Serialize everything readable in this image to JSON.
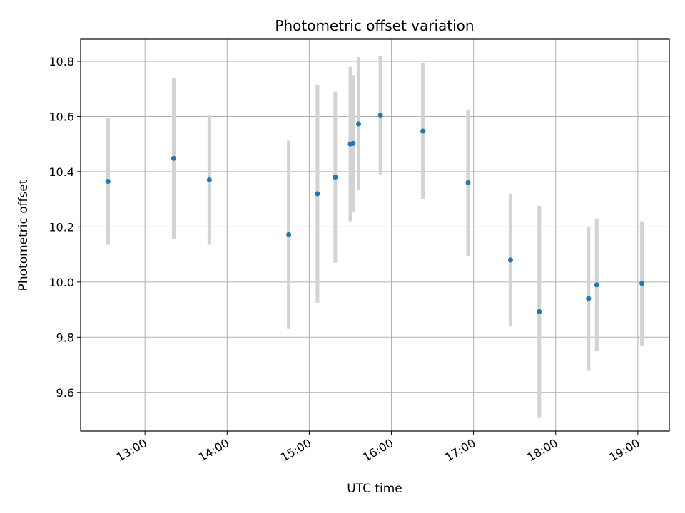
{
  "chart_data": {
    "type": "scatter",
    "title": "Photometric offset variation",
    "xlabel": "UTC time",
    "ylabel": "Photometric offset",
    "x_axis_type": "time",
    "xlim": [
      "12:13",
      "19:23"
    ],
    "ylim": [
      9.46,
      10.88
    ],
    "x_ticks": [
      "13:00",
      "14:00",
      "15:00",
      "16:00",
      "17:00",
      "18:00",
      "19:00"
    ],
    "y_ticks": [
      "9.6",
      "9.8",
      "10.0",
      "10.2",
      "10.4",
      "10.6",
      "10.8"
    ],
    "grid": true,
    "legend": "none",
    "series": [
      {
        "marker_color": "#1f77b4",
        "errorbar_color": "#d3d3d3",
        "points": [
          {
            "x": "12:33",
            "y": 10.365,
            "y_low": 10.135,
            "y_high": 10.595
          },
          {
            "x": "13:21",
            "y": 10.448,
            "y_low": 10.155,
            "y_high": 10.74
          },
          {
            "x": "13:47",
            "y": 10.37,
            "y_low": 10.135,
            "y_high": 10.605
          },
          {
            "x": "14:45",
            "y": 10.172,
            "y_low": 9.83,
            "y_high": 10.512
          },
          {
            "x": "15:06",
            "y": 10.32,
            "y_low": 9.925,
            "y_high": 10.715
          },
          {
            "x": "15:19",
            "y": 10.38,
            "y_low": 10.07,
            "y_high": 10.69
          },
          {
            "x": "15:30",
            "y": 10.5,
            "y_low": 10.22,
            "y_high": 10.78
          },
          {
            "x": "15:32",
            "y": 10.502,
            "y_low": 10.255,
            "y_high": 10.75
          },
          {
            "x": "15:36",
            "y": 10.573,
            "y_low": 10.335,
            "y_high": 10.815
          },
          {
            "x": "15:52",
            "y": 10.605,
            "y_low": 10.39,
            "y_high": 10.82
          },
          {
            "x": "16:23",
            "y": 10.547,
            "y_low": 10.3,
            "y_high": 10.795
          },
          {
            "x": "16:56",
            "y": 10.36,
            "y_low": 10.095,
            "y_high": 10.625
          },
          {
            "x": "17:27",
            "y": 10.08,
            "y_low": 9.84,
            "y_high": 10.32
          },
          {
            "x": "17:48",
            "y": 9.893,
            "y_low": 9.51,
            "y_high": 10.276
          },
          {
            "x": "18:24",
            "y": 9.94,
            "y_low": 9.68,
            "y_high": 10.2
          },
          {
            "x": "18:30",
            "y": 9.99,
            "y_low": 9.75,
            "y_high": 10.23
          },
          {
            "x": "19:03",
            "y": 9.995,
            "y_low": 9.77,
            "y_high": 10.22
          }
        ]
      }
    ]
  }
}
